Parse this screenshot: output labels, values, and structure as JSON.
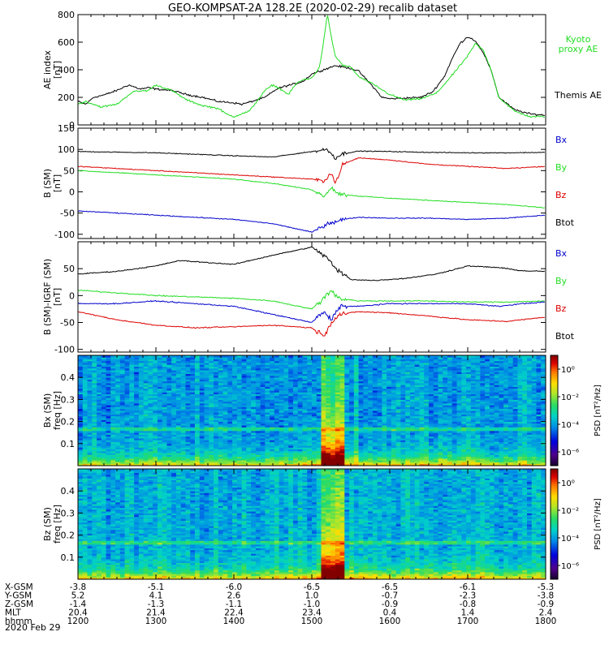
{
  "title": "GEO-KOMPSAT-2A 128.2E (2020-02-29) recalib dataset",
  "date_label": "2020 Feb 29",
  "time_axis": {
    "start": 1200,
    "end": 1800,
    "labels": [
      "1200",
      "1300",
      "1400",
      "1500",
      "1600",
      "1700",
      "1800"
    ]
  },
  "ephemeris": {
    "columns": 7,
    "rows": [
      {
        "label": "X-GSM",
        "values": [
          "-3.8",
          "-5.1",
          "-6.0",
          "-6.5",
          "-6.5",
          "-6.1",
          "-5.3"
        ]
      },
      {
        "label": "Y-GSM",
        "values": [
          "5.2",
          "4.1",
          "2.6",
          "1.0",
          "-0.7",
          "-2.3",
          "-3.8"
        ]
      },
      {
        "label": "Z-GSM",
        "values": [
          "-1.4",
          "-1.3",
          "-1.1",
          "-1.0",
          "-0.9",
          "-0.8",
          "-0.9"
        ]
      },
      {
        "label": "MLT",
        "values": [
          "20.4",
          "21.4",
          "22.4",
          "23.4",
          "0.4",
          "1.4",
          "2.4"
        ]
      },
      {
        "label": "hhmm",
        "values": [
          "1200",
          "1300",
          "1400",
          "1500",
          "1600",
          "1700",
          "1800"
        ]
      }
    ]
  },
  "colors": {
    "black": "#000000",
    "green": "#22dd22",
    "red": "#dd0000",
    "blue": "#0000cc",
    "kyoto": "#22dd22"
  },
  "chart_data": [
    {
      "type": "line",
      "id": "ae",
      "ylabel_lines": [
        "AE index",
        "[nT]"
      ],
      "ylim": [
        0,
        800
      ],
      "yticks": [
        0,
        200,
        400,
        600,
        800
      ],
      "legend": [
        {
          "text": "Kyoto",
          "color": "green"
        },
        {
          "text": "proxy AE",
          "color": "green"
        },
        {
          "text": "Themis AE",
          "color": "black"
        }
      ],
      "series": [
        {
          "name": "Themis AE",
          "color": "black",
          "t": [
            1200,
            1210,
            1220,
            1235,
            1250,
            1265,
            1280,
            1290,
            1300,
            1320,
            1340,
            1360,
            1380,
            1400,
            1410,
            1420,
            1440,
            1455,
            1465,
            1480,
            1490,
            1500,
            1510,
            1520,
            1530,
            1540,
            1550,
            1560,
            1575,
            1590,
            1600,
            1620,
            1640,
            1655,
            1670,
            1680,
            1690,
            1700,
            1710,
            1720,
            1730,
            1740,
            1760,
            1780,
            1800
          ],
          "v": [
            170,
            150,
            200,
            220,
            250,
            290,
            260,
            270,
            260,
            250,
            220,
            200,
            170,
            160,
            150,
            165,
            200,
            260,
            280,
            300,
            320,
            370,
            390,
            410,
            430,
            420,
            410,
            390,
            300,
            200,
            190,
            195,
            200,
            240,
            350,
            480,
            590,
            640,
            610,
            520,
            400,
            200,
            110,
            80,
            70
          ]
        },
        {
          "name": "Kyoto proxy AE",
          "color": "green",
          "t": [
            1200,
            1210,
            1230,
            1250,
            1270,
            1290,
            1300,
            1320,
            1340,
            1360,
            1380,
            1390,
            1400,
            1420,
            1440,
            1450,
            1460,
            1470,
            1480,
            1490,
            1500,
            1510,
            1515,
            1520,
            1525,
            1530,
            1540,
            1550,
            1560,
            1580,
            1600,
            1620,
            1640,
            1660,
            1680,
            1700,
            1710,
            1720,
            1730,
            1740,
            1760,
            1780,
            1800
          ],
          "v": [
            150,
            170,
            130,
            150,
            240,
            250,
            290,
            250,
            180,
            140,
            120,
            80,
            60,
            100,
            250,
            290,
            260,
            220,
            300,
            330,
            340,
            420,
            600,
            800,
            640,
            500,
            430,
            420,
            350,
            290,
            220,
            180,
            190,
            230,
            360,
            500,
            590,
            540,
            400,
            200,
            100,
            60,
            60
          ]
        }
      ]
    },
    {
      "type": "line",
      "id": "bsm",
      "ylabel_lines": [
        "B (SM)",
        "[nT]"
      ],
      "ylim": [
        -110,
        150
      ],
      "yticks": [
        -100,
        -50,
        0,
        50,
        100,
        150
      ],
      "legend": [
        {
          "text": "Bx",
          "color": "blue"
        },
        {
          "text": "By",
          "color": "green"
        },
        {
          "text": "Bz",
          "color": "red"
        },
        {
          "text": "Btot",
          "color": "black"
        }
      ],
      "series": [
        {
          "name": "Btot",
          "color": "black",
          "t": [
            1200,
            1300,
            1400,
            1450,
            1500,
            1520,
            1530,
            1540,
            1560,
            1600,
            1650,
            1700,
            1750,
            1800
          ],
          "v": [
            95,
            92,
            85,
            82,
            95,
            100,
            80,
            90,
            96,
            95,
            93,
            92,
            92,
            93
          ]
        },
        {
          "name": "Bz",
          "color": "red",
          "t": [
            1200,
            1250,
            1300,
            1400,
            1450,
            1500,
            1515,
            1525,
            1530,
            1540,
            1560,
            1600,
            1650,
            1700,
            1750,
            1800
          ],
          "v": [
            60,
            55,
            50,
            40,
            35,
            30,
            25,
            45,
            20,
            65,
            80,
            75,
            65,
            60,
            55,
            60
          ]
        },
        {
          "name": "By",
          "color": "green",
          "t": [
            1200,
            1300,
            1400,
            1450,
            1500,
            1515,
            1525,
            1535,
            1560,
            1600,
            1650,
            1700,
            1750,
            1800
          ],
          "v": [
            50,
            40,
            30,
            20,
            5,
            -10,
            10,
            -5,
            -10,
            -15,
            -20,
            -25,
            -30,
            -38
          ]
        },
        {
          "name": "Bx",
          "color": "blue",
          "t": [
            1200,
            1300,
            1400,
            1450,
            1500,
            1520,
            1530,
            1540,
            1560,
            1600,
            1650,
            1700,
            1750,
            1800
          ],
          "v": [
            -45,
            -55,
            -65,
            -75,
            -95,
            -75,
            -70,
            -65,
            -60,
            -62,
            -62,
            -65,
            -62,
            -55
          ]
        }
      ]
    },
    {
      "type": "line",
      "id": "bigrf",
      "ylabel_lines": [
        "B (SM)-IGRF (SM)",
        "[nT]"
      ],
      "ylim": [
        -105,
        100
      ],
      "yticks": [
        -100,
        -50,
        0,
        50
      ],
      "legend": [
        {
          "text": "Bx",
          "color": "blue"
        },
        {
          "text": "By",
          "color": "green"
        },
        {
          "text": "Bz",
          "color": "red"
        },
        {
          "text": "Btot",
          "color": "black"
        }
      ],
      "series": [
        {
          "name": "Btot",
          "color": "black",
          "t": [
            1200,
            1250,
            1300,
            1330,
            1360,
            1400,
            1450,
            1500,
            1520,
            1530,
            1550,
            1580,
            1620,
            1660,
            1700,
            1740,
            1770,
            1800
          ],
          "v": [
            40,
            45,
            55,
            65,
            62,
            58,
            75,
            90,
            70,
            50,
            30,
            28,
            32,
            40,
            55,
            52,
            46,
            45
          ]
        },
        {
          "name": "By",
          "color": "green",
          "t": [
            1200,
            1300,
            1400,
            1450,
            1500,
            1515,
            1525,
            1535,
            1560,
            1600,
            1650,
            1700,
            1750,
            1800
          ],
          "v": [
            10,
            0,
            -5,
            -10,
            -25,
            -5,
            10,
            -5,
            -10,
            -10,
            -10,
            -12,
            -12,
            -10
          ]
        },
        {
          "name": "Bx",
          "color": "blue",
          "t": [
            1200,
            1250,
            1300,
            1400,
            1450,
            1500,
            1515,
            1525,
            1535,
            1560,
            1600,
            1650,
            1700,
            1740,
            1770,
            1800
          ],
          "v": [
            -15,
            -15,
            -10,
            -20,
            -35,
            -50,
            -30,
            -45,
            -20,
            -20,
            -15,
            -15,
            -15,
            -20,
            -15,
            -12
          ]
        },
        {
          "name": "Bz",
          "color": "red",
          "t": [
            1200,
            1250,
            1300,
            1350,
            1400,
            1450,
            1500,
            1515,
            1525,
            1535,
            1560,
            1600,
            1650,
            1700,
            1750,
            1800
          ],
          "v": [
            -30,
            -45,
            -55,
            -60,
            -58,
            -55,
            -60,
            -75,
            -50,
            -35,
            -30,
            -32,
            -38,
            -45,
            -48,
            -40
          ]
        }
      ]
    },
    {
      "type": "heatmap",
      "id": "bxspec",
      "ylabel_lines": [
        "Bx (SM)",
        "freq [Hz]"
      ],
      "ylim": [
        0,
        0.5
      ],
      "yticks": [
        0.1,
        0.2,
        0.3,
        0.4
      ],
      "colorbar_label": "PSD [nT²/Hz]",
      "colorbar_ticks": [
        "10⁰",
        "10⁻²",
        "10⁻⁴",
        "10⁻⁶"
      ],
      "colorbar_range": [
        -7,
        1
      ],
      "description_time_of_burst": [
        1515,
        1540
      ],
      "noise_level": -4.0
    },
    {
      "type": "heatmap",
      "id": "bzspec",
      "ylabel_lines": [
        "Bz (SM)",
        "freq [Hz]"
      ],
      "ylim": [
        0,
        0.5
      ],
      "yticks": [
        0.1,
        0.2,
        0.3,
        0.4
      ],
      "colorbar_label": "PSD [nT²/Hz]",
      "colorbar_ticks": [
        "10⁰",
        "10⁻²",
        "10⁻⁴",
        "10⁻⁶"
      ],
      "colorbar_range": [
        -7,
        1
      ],
      "description_time_of_burst": [
        1515,
        1540
      ],
      "noise_level": -3.8
    }
  ]
}
